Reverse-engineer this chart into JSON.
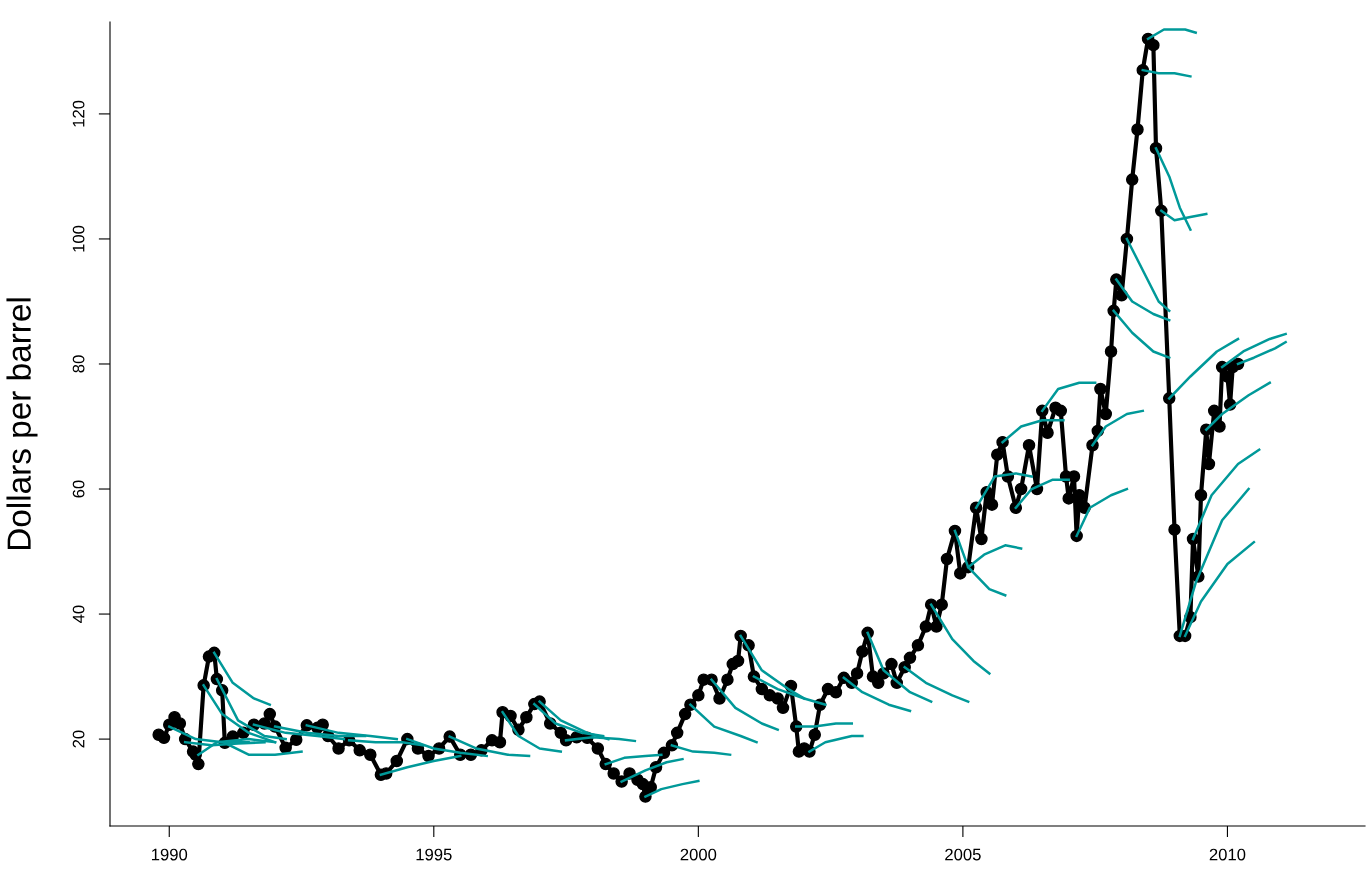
{
  "chart_data": {
    "type": "line",
    "ylabel": "Dollars per barrel",
    "xlim": [
      1988.88,
      2012.6
    ],
    "ylim": [
      6.1,
      134.7
    ],
    "xticks": [
      1990,
      1995,
      2000,
      2005,
      2010
    ],
    "yticks": [
      20,
      40,
      60,
      80,
      100,
      120
    ],
    "line_style": "solid",
    "series": [
      {
        "color": "#000000",
        "marker": "circle",
        "x": [
          1989.8,
          1989.9,
          1990.0,
          1990.1,
          1990.2,
          1990.3,
          1990.45,
          1990.5,
          1990.55,
          1990.65,
          1990.75,
          1990.85,
          1990.9,
          1991.0,
          1991.05,
          1991.2,
          1991.4,
          1991.6,
          1991.8,
          1991.9,
          1992.0,
          1992.2,
          1992.4,
          1992.6,
          1992.8,
          1992.9,
          1993.0,
          1993.2,
          1993.4,
          1993.6,
          1993.8,
          1994.0,
          1994.1,
          1994.3,
          1994.5,
          1994.7,
          1994.9,
          1995.1,
          1995.3,
          1995.5,
          1995.7,
          1995.9,
          1996.1,
          1996.25,
          1996.3,
          1996.45,
          1996.6,
          1996.75,
          1996.9,
          1997.0,
          1997.2,
          1997.4,
          1997.5,
          1997.7,
          1997.9,
          1998.1,
          1998.25,
          1998.4,
          1998.55,
          1998.7,
          1998.85,
          1998.95,
          1999.0,
          1999.1,
          1999.2,
          1999.35,
          1999.5,
          1999.6,
          1999.75,
          1999.85,
          2000.0,
          2000.1,
          2000.25,
          2000.4,
          2000.55,
          2000.65,
          2000.75,
          2000.8,
          2000.95,
          2001.05,
          2001.2,
          2001.35,
          2001.5,
          2001.6,
          2001.75,
          2001.85,
          2001.9,
          2002.0,
          2002.1,
          2002.2,
          2002.3,
          2002.45,
          2002.6,
          2002.75,
          2002.9,
          2003.0,
          2003.1,
          2003.2,
          2003.3,
          2003.4,
          2003.5,
          2003.65,
          2003.75,
          2003.9,
          2004.0,
          2004.15,
          2004.3,
          2004.4,
          2004.5,
          2004.6,
          2004.7,
          2004.85,
          2004.95,
          2005.1,
          2005.25,
          2005.35,
          2005.45,
          2005.55,
          2005.65,
          2005.75,
          2005.85,
          2006.0,
          2006.1,
          2006.25,
          2006.4,
          2006.5,
          2006.6,
          2006.75,
          2006.85,
          2006.95,
          2007.0,
          2007.1,
          2007.15,
          2007.2,
          2007.3,
          2007.45,
          2007.55,
          2007.6,
          2007.7,
          2007.8,
          2007.85,
          2007.9,
          2008.0,
          2008.1,
          2008.2,
          2008.3,
          2008.4,
          2008.5,
          2008.6,
          2008.65,
          2008.75,
          2008.9,
          2009.0,
          2009.1,
          2009.2,
          2009.3,
          2009.35,
          2009.45,
          2009.5,
          2009.6,
          2009.65,
          2009.75,
          2009.85,
          2009.9,
          2010.0,
          2010.05,
          2010.1,
          2010.2
        ],
        "values": [
          20.7,
          20.2,
          22.3,
          23.5,
          22.5,
          20,
          18,
          17.5,
          16,
          28.6,
          33.2,
          33.8,
          29.6,
          27.8,
          19.4,
          20.4,
          21,
          22.3,
          22.5,
          24,
          22,
          18.6,
          19.9,
          22.2,
          21.8,
          22.3,
          20.5,
          18.5,
          19.8,
          18.2,
          17.5,
          14.3,
          14.5,
          16.5,
          20,
          18.5,
          17.3,
          18.5,
          20.4,
          17.5,
          17.5,
          18.2,
          19.8,
          19.5,
          24.3,
          23.7,
          21.5,
          23.5,
          25.6,
          26,
          22.5,
          21,
          19.8,
          20.3,
          20.2,
          18.5,
          16,
          14.5,
          13.2,
          14.5,
          13.5,
          12.8,
          10.8,
          12.3,
          15.5,
          17.8,
          19,
          21,
          24,
          25.5,
          27,
          29.5,
          29.5,
          26.5,
          29.5,
          32,
          32.5,
          36.5,
          35,
          30,
          28,
          27,
          26.5,
          25,
          28.5,
          22,
          18,
          18.5,
          18,
          20.7,
          25.5,
          28,
          27.5,
          29.8,
          29,
          30.5,
          34,
          37,
          30,
          29,
          30.5,
          32,
          29,
          31.5,
          33,
          35,
          38,
          41.5,
          38,
          41.5,
          48.8,
          53.3,
          46.5,
          47.5,
          57,
          52,
          59.5,
          57.5,
          65.5,
          67.5,
          62,
          57,
          60,
          67,
          60,
          72.5,
          69,
          73,
          72.5,
          62,
          58.5,
          62,
          52.5,
          59,
          57,
          67,
          69.3,
          76,
          72,
          82,
          88.5,
          93.5,
          91,
          100,
          109.5,
          117.5,
          127,
          132,
          131,
          114.5,
          104.5,
          74.5,
          53.5,
          36.5,
          36.5,
          39.5,
          52,
          46,
          59,
          69.5,
          64,
          72.5,
          70,
          79.5,
          78,
          73.5,
          79.5,
          80
        ]
      },
      {
        "color": "#009999",
        "x": [
          1990.0,
          1990.5,
          1991.0,
          1991.5
        ],
        "values": [
          22,
          20,
          19.5,
          19.5
        ]
      },
      {
        "color": "#009999",
        "x": [
          1990.3,
          1990.8,
          1991.3,
          1991.8
        ],
        "values": [
          19.5,
          19,
          19.3,
          19.5
        ]
      },
      {
        "color": "#009999",
        "x": [
          1990.55,
          1990.9,
          1991.5,
          1992.0
        ],
        "values": [
          17.5,
          19.5,
          20,
          19.5
        ]
      },
      {
        "color": "#009999",
        "x": [
          1990.65,
          1991.0,
          1991.5,
          1992.0
        ],
        "values": [
          28.6,
          24,
          21,
          19.5
        ]
      },
      {
        "color": "#009999",
        "x": [
          1990.85,
          1991.2,
          1991.6,
          1991.9
        ],
        "values": [
          33.8,
          29,
          26.5,
          25.5
        ]
      },
      {
        "color": "#009999",
        "x": [
          1990.9,
          1991.3,
          1991.8,
          1992.2
        ],
        "values": [
          29.6,
          23,
          20.5,
          20
        ]
      },
      {
        "color": "#009999",
        "x": [
          1991.05,
          1991.5,
          1992.0,
          1992.5
        ],
        "values": [
          19.4,
          17.5,
          17.5,
          18
        ]
      },
      {
        "color": "#009999",
        "x": [
          1991.6,
          1992.2,
          1992.8,
          1993.3
        ],
        "values": [
          22.3,
          21,
          20.5,
          20
        ]
      },
      {
        "color": "#009999",
        "x": [
          1992.0,
          1992.6,
          1993.2,
          1993.7
        ],
        "values": [
          22,
          21,
          20.5,
          20.5
        ]
      },
      {
        "color": "#009999",
        "x": [
          1992.6,
          1993.2,
          1993.8,
          1994.3
        ],
        "values": [
          22.2,
          21,
          20.5,
          20
        ]
      },
      {
        "color": "#009999",
        "x": [
          1993.4,
          1993.9,
          1994.4,
          1994.8
        ],
        "values": [
          19.8,
          19.5,
          19.5,
          19
        ]
      },
      {
        "color": "#009999",
        "x": [
          1994.0,
          1994.5,
          1995.0,
          1995.5
        ],
        "values": [
          14.3,
          15.5,
          16.5,
          17.3
        ]
      },
      {
        "color": "#009999",
        "x": [
          1994.5,
          1995.0,
          1995.5,
          1996.0
        ],
        "values": [
          20,
          18.5,
          17.8,
          17.3
        ]
      },
      {
        "color": "#009999",
        "x": [
          1995.3,
          1995.8,
          1996.4,
          1996.8
        ],
        "values": [
          20.4,
          18.5,
          17.5,
          17.3
        ]
      },
      {
        "color": "#009999",
        "x": [
          1996.3,
          1996.6,
          1997.0,
          1997.4
        ],
        "values": [
          24.3,
          20.5,
          18.5,
          18
        ]
      },
      {
        "color": "#009999",
        "x": [
          1996.9,
          1997.3,
          1997.8,
          1998.2
        ],
        "values": [
          25.6,
          22.5,
          21,
          20.5
        ]
      },
      {
        "color": "#009999",
        "x": [
          1997.0,
          1997.4,
          1997.9,
          1998.3
        ],
        "values": [
          26,
          23,
          21,
          20
        ]
      },
      {
        "color": "#009999",
        "x": [
          1997.5,
          1998.0,
          1998.5,
          1998.8
        ],
        "values": [
          19.8,
          20.3,
          20,
          19.7
        ]
      },
      {
        "color": "#009999",
        "x": [
          1998.25,
          1998.6,
          1999.0,
          1999.3
        ],
        "values": [
          16,
          17,
          17.3,
          17.5
        ]
      },
      {
        "color": "#009999",
        "x": [
          1998.55,
          1999.0,
          1999.4,
          1999.7
        ],
        "values": [
          13.2,
          15,
          16.3,
          16.8
        ]
      },
      {
        "color": "#009999",
        "x": [
          1999.0,
          1999.3,
          1999.7,
          2000.0
        ],
        "values": [
          10.8,
          12,
          12.8,
          13.3
        ]
      },
      {
        "color": "#009999",
        "x": [
          1999.5,
          1999.9,
          2000.3,
          2000.6
        ],
        "values": [
          19,
          18,
          17.8,
          17.5
        ]
      },
      {
        "color": "#009999",
        "x": [
          1999.85,
          2000.3,
          2000.8,
          2001.1
        ],
        "values": [
          25.5,
          22,
          20.5,
          19.5
        ]
      },
      {
        "color": "#009999",
        "x": [
          2000.25,
          2000.7,
          2001.2,
          2001.5
        ],
        "values": [
          29.5,
          25,
          22.5,
          21.5
        ]
      },
      {
        "color": "#009999",
        "x": [
          2000.8,
          2001.2,
          2001.7,
          2002.0
        ],
        "values": [
          36.5,
          31,
          28,
          26.5
        ]
      },
      {
        "color": "#009999",
        "x": [
          2001.05,
          2001.5,
          2002.0,
          2002.4
        ],
        "values": [
          30,
          28,
          26.5,
          25.5
        ]
      },
      {
        "color": "#009999",
        "x": [
          2001.85,
          2002.2,
          2002.6,
          2002.9
        ],
        "values": [
          22,
          22,
          22.5,
          22.5
        ]
      },
      {
        "color": "#009999",
        "x": [
          2002.1,
          2002.4,
          2002.9,
          2003.1
        ],
        "values": [
          18,
          19.5,
          20.5,
          20.5
        ]
      },
      {
        "color": "#009999",
        "x": [
          2002.75,
          2003.1,
          2003.6,
          2004.0
        ],
        "values": [
          29.8,
          27.5,
          25.5,
          24.5
        ]
      },
      {
        "color": "#009999",
        "x": [
          2003.2,
          2003.5,
          2004.0,
          2004.4
        ],
        "values": [
          37,
          31,
          27.5,
          26
        ]
      },
      {
        "color": "#009999",
        "x": [
          2003.9,
          2004.3,
          2004.8,
          2005.1
        ],
        "values": [
          31.5,
          29,
          27,
          26
        ]
      },
      {
        "color": "#009999",
        "x": [
          2004.4,
          2004.8,
          2005.2,
          2005.5
        ],
        "values": [
          41.5,
          36,
          32.5,
          30.5
        ]
      },
      {
        "color": "#009999",
        "x": [
          2004.85,
          2005.1,
          2005.5,
          2005.8
        ],
        "values": [
          53.3,
          47.5,
          44,
          43
        ]
      },
      {
        "color": "#009999",
        "x": [
          2005.1,
          2005.4,
          2005.8,
          2006.1
        ],
        "values": [
          47.5,
          49.5,
          51,
          50.5
        ]
      },
      {
        "color": "#009999",
        "x": [
          2005.25,
          2005.6,
          2006.0,
          2006.3
        ],
        "values": [
          57,
          62,
          62.5,
          62
        ]
      },
      {
        "color": "#009999",
        "x": [
          2005.75,
          2006.1,
          2006.5,
          2006.9
        ],
        "values": [
          67.5,
          70,
          71,
          71
        ]
      },
      {
        "color": "#009999",
        "x": [
          2006.0,
          2006.3,
          2006.7,
          2007.0
        ],
        "values": [
          57,
          60,
          61.5,
          61.5
        ]
      },
      {
        "color": "#009999",
        "x": [
          2006.5,
          2006.8,
          2007.2,
          2007.5
        ],
        "values": [
          72.5,
          76,
          77,
          77
        ]
      },
      {
        "color": "#009999",
        "x": [
          2007.15,
          2007.4,
          2007.8,
          2008.1
        ],
        "values": [
          52.5,
          57,
          59,
          60
        ]
      },
      {
        "color": "#009999",
        "x": [
          2007.45,
          2007.7,
          2008.1,
          2008.4
        ],
        "values": [
          67,
          70,
          72,
          72.5
        ]
      },
      {
        "color": "#009999",
        "x": [
          2007.85,
          2008.2,
          2008.6,
          2008.9
        ],
        "values": [
          88.5,
          85,
          82,
          81
        ]
      },
      {
        "color": "#009999",
        "x": [
          2007.9,
          2008.2,
          2008.6,
          2008.9
        ],
        "values": [
          93.5,
          90,
          88,
          87
        ]
      },
      {
        "color": "#009999",
        "x": [
          2008.1,
          2008.4,
          2008.7,
          2008.9
        ],
        "values": [
          100,
          95,
          90,
          88.5
        ]
      },
      {
        "color": "#009999",
        "x": [
          2008.4,
          2008.7,
          2009.0,
          2009.3
        ],
        "values": [
          127,
          126.5,
          126.5,
          126
        ]
      },
      {
        "color": "#009999",
        "x": [
          2008.5,
          2008.8,
          2009.2,
          2009.4
        ],
        "values": [
          132,
          133.5,
          133.5,
          133
        ]
      },
      {
        "color": "#009999",
        "x": [
          2008.65,
          2008.9,
          2009.1,
          2009.3
        ],
        "values": [
          114.5,
          110,
          105,
          101.5
        ]
      },
      {
        "color": "#009999",
        "x": [
          2008.75,
          2009.0,
          2009.3,
          2009.6
        ],
        "values": [
          104.5,
          103,
          103.5,
          104
        ]
      },
      {
        "color": "#009999",
        "x": [
          2008.9,
          2009.3,
          2009.8,
          2010.2
        ],
        "values": [
          74.5,
          78,
          82,
          84
        ]
      },
      {
        "color": "#009999",
        "x": [
          2009.1,
          2009.4,
          2009.9,
          2010.4
        ],
        "values": [
          36.5,
          45,
          55,
          60
        ]
      },
      {
        "color": "#009999",
        "x": [
          2009.2,
          2009.5,
          2010.0,
          2010.5
        ],
        "values": [
          36.5,
          42,
          48,
          51.5
        ]
      },
      {
        "color": "#009999",
        "x": [
          2009.35,
          2009.7,
          2010.2,
          2010.6
        ],
        "values": [
          52,
          59,
          64,
          66.3
        ]
      },
      {
        "color": "#009999",
        "x": [
          2009.6,
          2009.9,
          2010.4,
          2010.8
        ],
        "values": [
          69.5,
          72,
          75,
          77
        ]
      },
      {
        "color": "#009999",
        "x": [
          2009.9,
          2010.3,
          2010.8,
          2011.1
        ],
        "values": [
          79.5,
          82,
          84,
          84.8
        ]
      },
      {
        "color": "#009999",
        "x": [
          2010.2,
          2010.5,
          2010.9,
          2011.1
        ],
        "values": [
          80,
          81,
          82.5,
          83.5
        ]
      }
    ]
  }
}
